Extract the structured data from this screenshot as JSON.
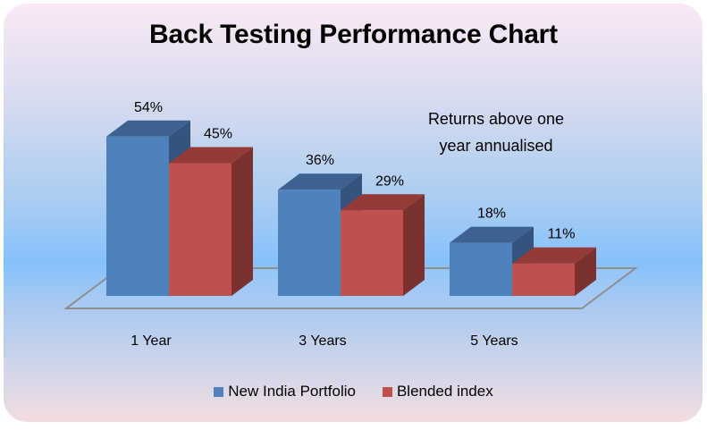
{
  "chart_data": {
    "type": "bar",
    "style": "3d-clustered-column",
    "title": "Back Testing Performance Chart",
    "annotation": [
      "Returns above one",
      "year annualised"
    ],
    "categories": [
      "1 Year",
      "3 Years",
      "5 Years"
    ],
    "series": [
      {
        "name": "New India Portfolio",
        "values": [
          54,
          36,
          18
        ],
        "labels": [
          "54%",
          "36%",
          "18%"
        ],
        "color": "#4f81bd"
      },
      {
        "name": "Blended index",
        "values": [
          45,
          29,
          11
        ],
        "labels": [
          "45%",
          "29%",
          "11%"
        ],
        "color": "#c0504d"
      }
    ],
    "xlabel": "",
    "ylabel": "",
    "value_unit": "%",
    "grid": false,
    "legend_position": "bottom"
  }
}
